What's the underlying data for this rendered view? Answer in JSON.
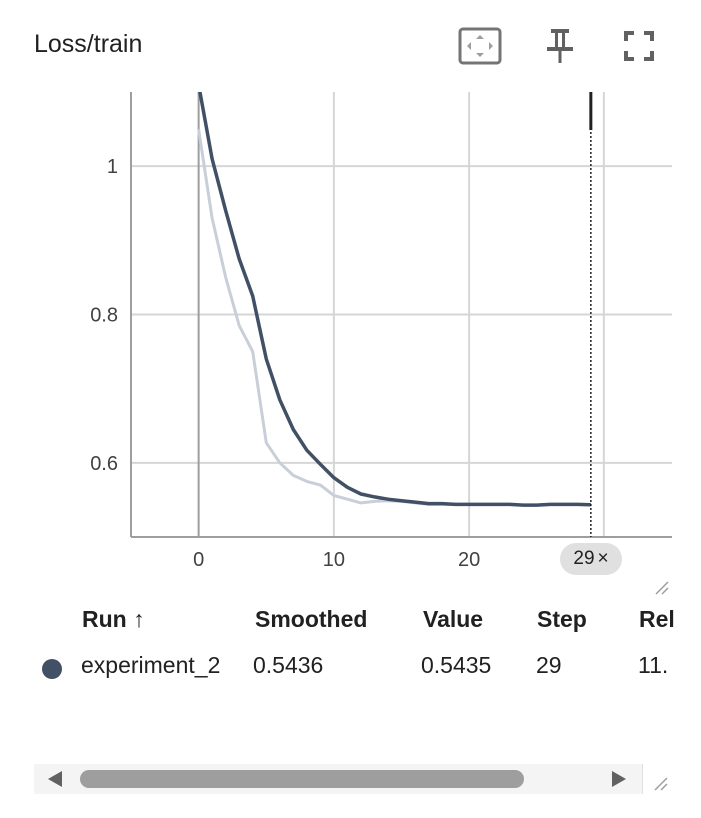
{
  "card": {
    "title": "Loss/train"
  },
  "toolbar": {
    "buttons": [
      {
        "name": "fit-domain-icon"
      },
      {
        "name": "pin-icon"
      },
      {
        "name": "fullscreen-icon"
      },
      {
        "name": "more-vert-icon"
      }
    ]
  },
  "colors": {
    "series": "#425066",
    "raw": "#c9cfd9",
    "grid": "#d6d6d6",
    "axis": "#9e9e9e",
    "cursor": "#212121"
  },
  "chart_data": {
    "type": "line",
    "title": "",
    "xlabel": "",
    "ylabel": "",
    "xlim": [
      -5,
      35
    ],
    "ylim": [
      0.5,
      1.1
    ],
    "xticks": [
      0,
      10,
      20
    ],
    "yticks": [
      0.6,
      0.8,
      1
    ],
    "grid": true,
    "series": [
      {
        "name": "experiment_2",
        "role": "smoothed",
        "x": [
          0,
          1,
          2,
          3,
          4,
          5,
          6,
          7,
          8,
          9,
          10,
          11,
          12,
          13,
          14,
          15,
          16,
          17,
          18,
          19,
          20,
          21,
          22,
          23,
          24,
          25,
          26,
          27,
          28,
          29
        ],
        "values": [
          1.11,
          1.01,
          0.94,
          0.875,
          0.825,
          0.74,
          0.685,
          0.645,
          0.617,
          0.598,
          0.58,
          0.567,
          0.558,
          0.554,
          0.551,
          0.549,
          0.547,
          0.545,
          0.545,
          0.544,
          0.544,
          0.544,
          0.544,
          0.544,
          0.543,
          0.543,
          0.544,
          0.544,
          0.544,
          0.5436
        ]
      },
      {
        "name": "experiment_2",
        "role": "raw",
        "x": [
          0,
          1,
          2,
          3,
          4,
          5,
          6,
          7,
          8,
          9,
          10,
          11,
          12,
          13,
          14,
          15,
          16,
          17,
          18,
          19,
          20,
          21,
          22,
          23,
          24,
          25,
          26,
          27,
          28,
          29
        ],
        "values": [
          1.05,
          0.93,
          0.85,
          0.785,
          0.75,
          0.627,
          0.6,
          0.583,
          0.575,
          0.57,
          0.556,
          0.551,
          0.546,
          0.548,
          0.549,
          0.548,
          0.546,
          0.544,
          0.544,
          0.544,
          0.544,
          0.544,
          0.544,
          0.544,
          0.543,
          0.543,
          0.544,
          0.544,
          0.544,
          0.5435
        ]
      }
    ],
    "cursor_step": 29
  },
  "step_chip": {
    "label": "29",
    "close": "×"
  },
  "table": {
    "headers": {
      "run": "Run ↑",
      "smoothed": "Smoothed",
      "value": "Value",
      "step": "Step",
      "relative": "Rel"
    },
    "rows": [
      {
        "run": "experiment_2",
        "smoothed": "0.5436",
        "value": "0.5435",
        "step": "29",
        "relative": "11.",
        "color": "#425066"
      }
    ]
  }
}
